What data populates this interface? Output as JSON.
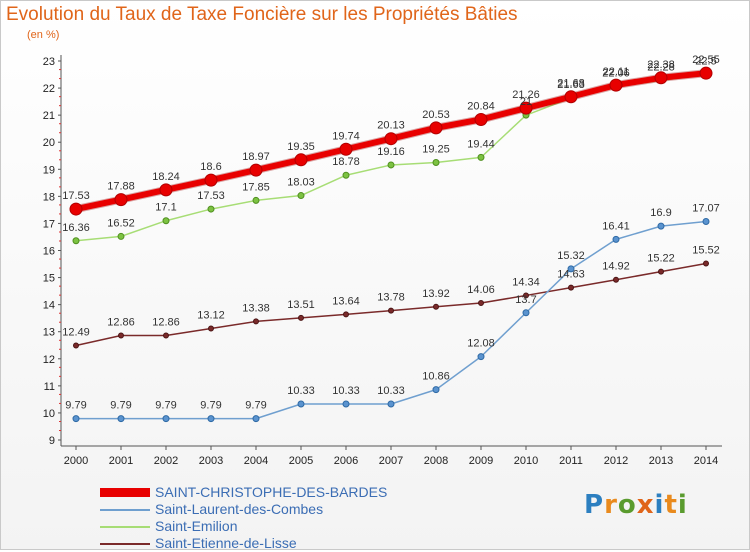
{
  "title": "Evolution du Taux de Taxe Foncière sur les Propriétés Bâties",
  "unit": "(en %)",
  "brand": {
    "letters": [
      "P",
      "r",
      "o",
      "x",
      "i",
      "t",
      "i"
    ],
    "colors": [
      "#2c7fc0",
      "#e98a1d",
      "#5a9b2e",
      "#e0651a",
      "#2c7fc0",
      "#e98a1d",
      "#5a9b2e"
    ]
  },
  "colors": {
    "title": "#e0651a",
    "legend_text": "#3b6db4",
    "s0": "#e80000",
    "s0_marker": "#e80000",
    "s1": "#6f9fcf",
    "s1_marker": "#5a93cf",
    "s2": "#a7dd75",
    "s2_marker": "#7cc241",
    "s3": "#7a2a2a",
    "s3_marker": "#7a2a2a"
  },
  "chart_data": {
    "type": "line",
    "title": "Evolution du Taux de Taxe Foncière sur les Propriétés Bâties",
    "ylabel": "(en %)",
    "xlabel": "",
    "ylim": [
      9,
      23
    ],
    "y_ticks": [
      "9",
      "10",
      "11",
      "12",
      "13",
      "14",
      "15",
      "16",
      "17",
      "18",
      "19",
      "20",
      "21",
      "22",
      "23"
    ],
    "categories": [
      "2000",
      "2001",
      "2002",
      "2003",
      "2004",
      "2005",
      "2006",
      "2007",
      "2008",
      "2009",
      "2010",
      "2011",
      "2012",
      "2013",
      "2014"
    ],
    "series": [
      {
        "name": "SAINT-CHRISTOPHE-DES-BARDES",
        "values": [
          17.53,
          17.88,
          18.24,
          18.6,
          18.97,
          19.35,
          19.74,
          20.13,
          20.53,
          20.84,
          21.26,
          21.68,
          22.11,
          22.38,
          22.55
        ],
        "labels": [
          "17.53",
          "17.88",
          "18.24",
          "18.6",
          "18.97",
          "19.35",
          "19.74",
          "20.13",
          "20.53",
          "20.84",
          "21.26",
          "21.68",
          "22.11",
          "22.38",
          "22.55"
        ]
      },
      {
        "name": "Saint-Laurent-des-Combes",
        "values": [
          9.79,
          9.79,
          9.79,
          9.79,
          9.79,
          10.33,
          10.33,
          10.33,
          10.86,
          12.08,
          13.7,
          15.32,
          16.41,
          16.9,
          17.07
        ],
        "labels": [
          "9.79",
          "9.79",
          "9.79",
          "9.79",
          "9.79",
          "10.33",
          "10.33",
          "10.33",
          "10.86",
          "12.08",
          "13.7",
          "15.32",
          "16.41",
          "16.9",
          "17.07"
        ]
      },
      {
        "name": "Saint-Emilion",
        "values": [
          16.36,
          16.52,
          17.1,
          17.53,
          17.85,
          18.03,
          18.78,
          19.16,
          19.25,
          19.44,
          21.0,
          21.63,
          22.06,
          22.28,
          22.5
        ],
        "labels": [
          "16.36",
          "16.52",
          "17.1",
          "17.53",
          "17.85",
          "18.03",
          "18.78",
          "19.16",
          "19.25",
          "19.44",
          "21",
          "21.63",
          "22.06",
          "22.28",
          "22.5"
        ]
      },
      {
        "name": "Saint-Etienne-de-Lisse",
        "values": [
          12.49,
          12.86,
          12.86,
          13.12,
          13.38,
          13.51,
          13.64,
          13.78,
          13.92,
          14.06,
          14.34,
          14.63,
          14.92,
          15.22,
          15.52
        ],
        "labels": [
          "12.49",
          "12.86",
          "12.86",
          "13.12",
          "13.38",
          "13.51",
          "13.64",
          "13.78",
          "13.92",
          "14.06",
          "14.34",
          "14.63",
          "14.92",
          "15.22",
          "15.52"
        ]
      }
    ],
    "grid": false,
    "legend": "bottom-left"
  }
}
